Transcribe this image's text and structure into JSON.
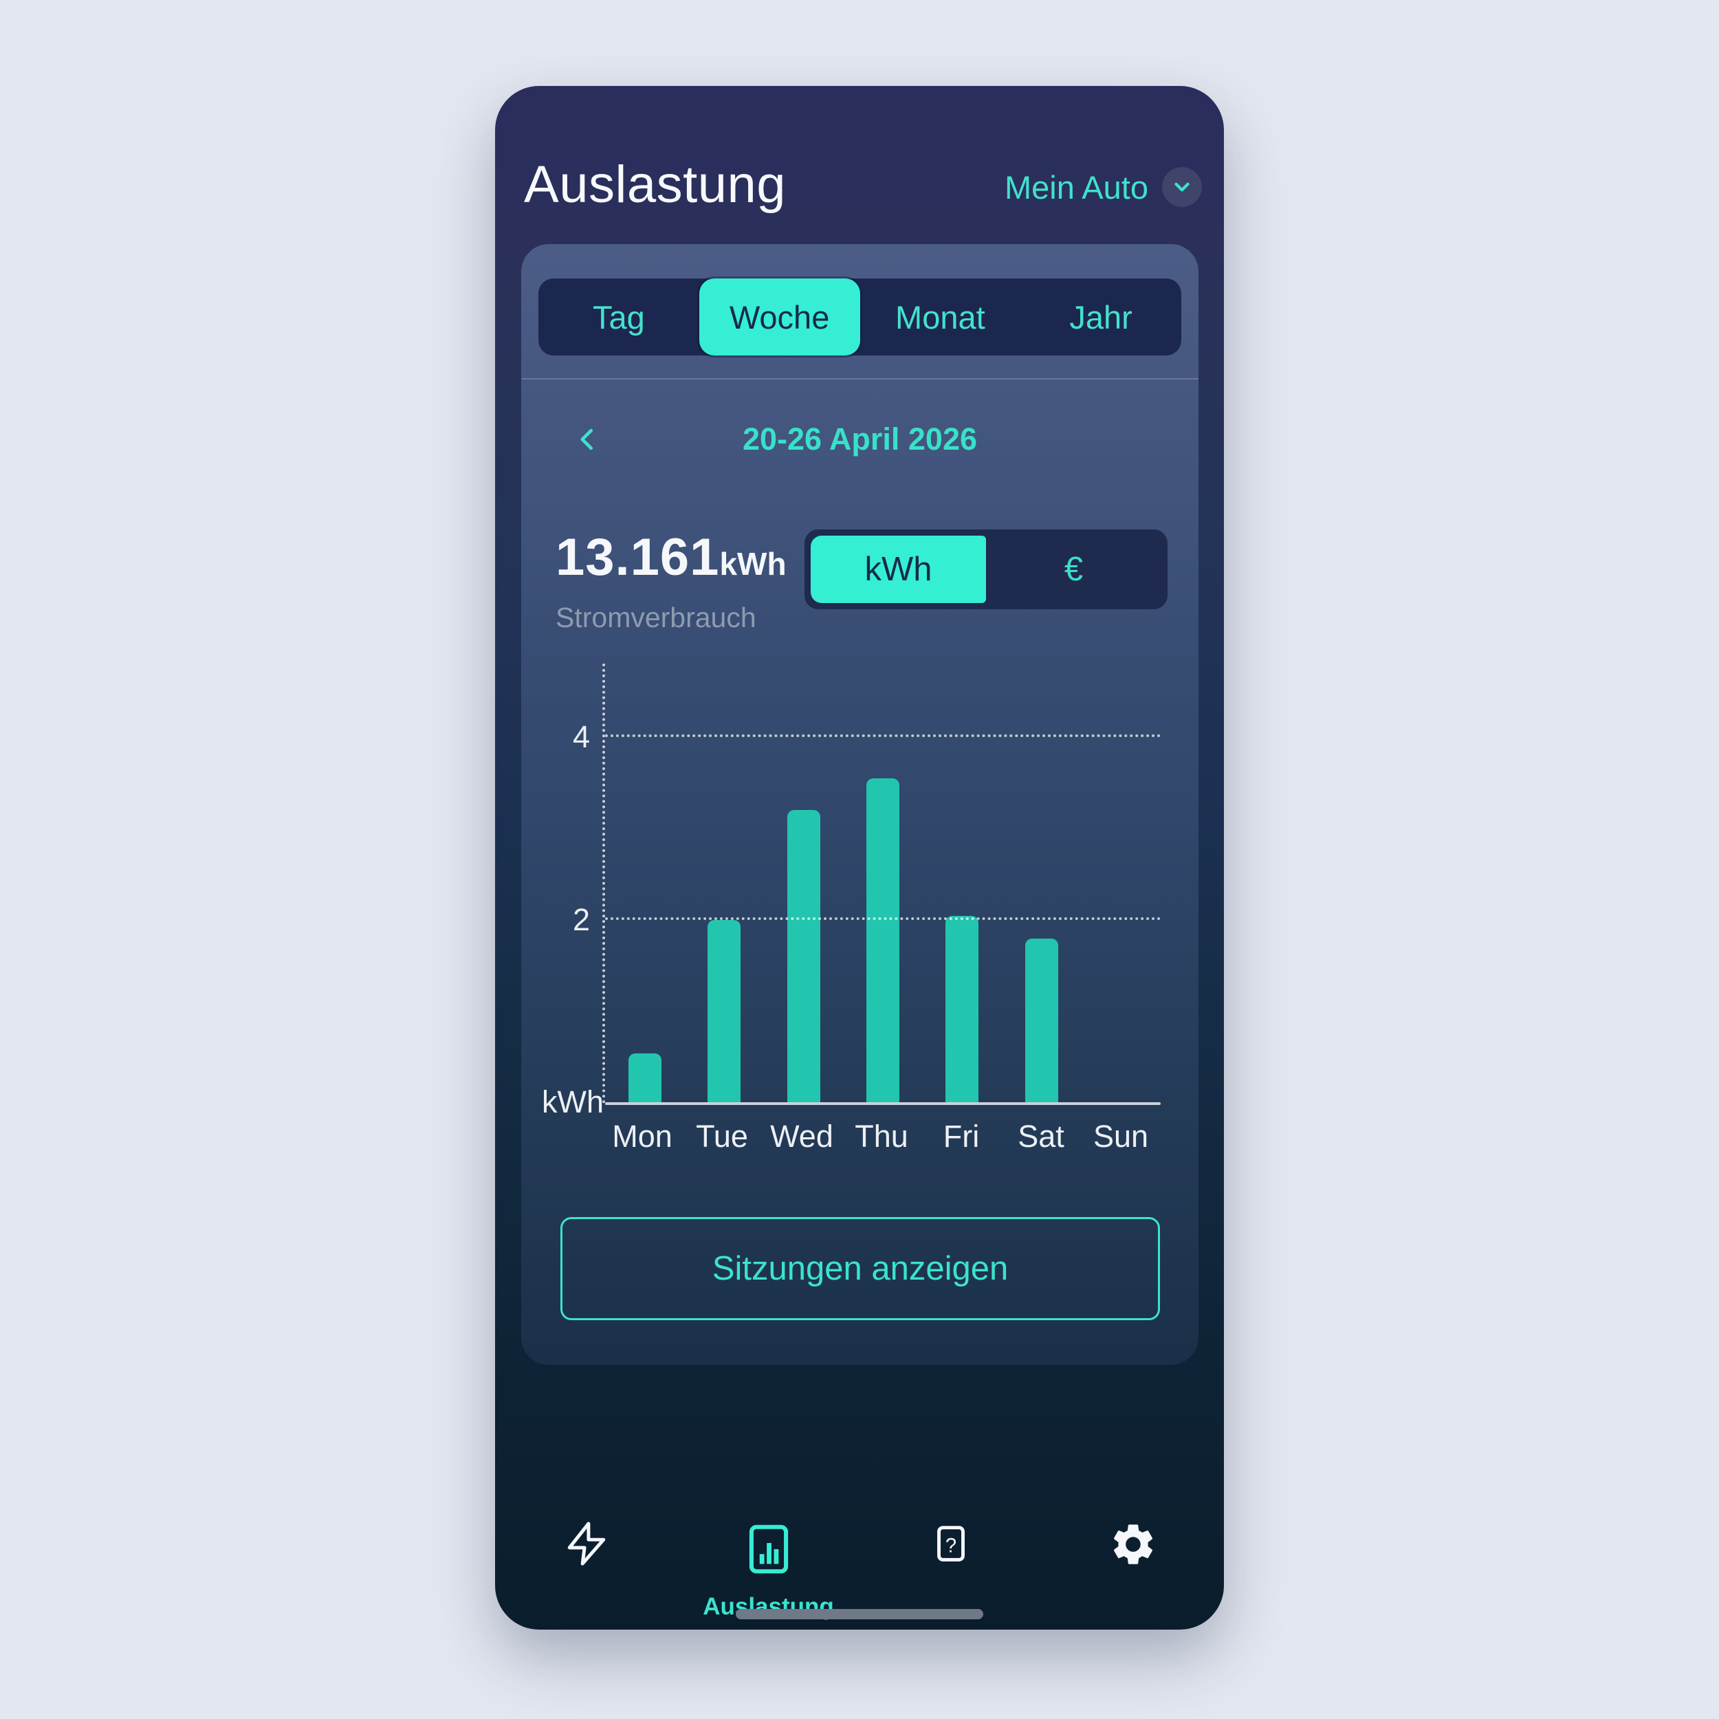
{
  "header": {
    "title": "Auslastung",
    "vehicle_selector": {
      "label": "Mein Auto",
      "icon": "chevron-down-icon"
    }
  },
  "period_tabs": {
    "items": [
      {
        "label": "Tag",
        "active": false
      },
      {
        "label": "Woche",
        "active": true
      },
      {
        "label": "Monat",
        "active": false
      },
      {
        "label": "Jahr",
        "active": false
      }
    ]
  },
  "week_nav": {
    "prev_icon": "chevron-left-icon",
    "range_label": "20-26 April 2026"
  },
  "stats": {
    "value": "13.161",
    "unit": "kWh",
    "caption": "Stromverbrauch"
  },
  "unit_toggle": {
    "options": [
      {
        "label": "kWh",
        "active": true
      },
      {
        "label": "€",
        "active": false
      }
    ]
  },
  "chart_data": {
    "type": "bar",
    "categories": [
      "Mon",
      "Tue",
      "Wed",
      "Thu",
      "Fri",
      "Sat",
      "Sun"
    ],
    "values": [
      0.55,
      2.0,
      3.2,
      3.55,
      2.05,
      1.8,
      0
    ],
    "title": "",
    "xlabel": "",
    "ylabel": "kWh",
    "yticks": [
      2,
      4
    ],
    "ylim": [
      0,
      4.8
    ],
    "grid": "dotted horizontal lines at yticks, dotted vertical y-axis",
    "legend": "none"
  },
  "actions": {
    "show_sessions_label": "Sitzungen anzeigen"
  },
  "bottom_nav": {
    "items": [
      {
        "name": "charging",
        "icon": "lightning-bolt-icon",
        "label": "",
        "active": false
      },
      {
        "name": "usage",
        "icon": "bar-chart-icon",
        "label": "Auslastung",
        "active": true
      },
      {
        "name": "help",
        "icon": "question-mark-icon",
        "label": "",
        "active": false
      },
      {
        "name": "settings",
        "icon": "gear-icon",
        "label": "",
        "active": false
      }
    ],
    "question_glyph": "?"
  },
  "colors": {
    "accent_bright": "#35EFD3",
    "accent_text": "#3BE3CC",
    "bar_fill": "#22C6AE",
    "dark_on_accent": "#17294D",
    "phone_top": "#2B2D5D",
    "phone_bottom": "#0A1D2C",
    "page_background": "#E3E7F0"
  }
}
